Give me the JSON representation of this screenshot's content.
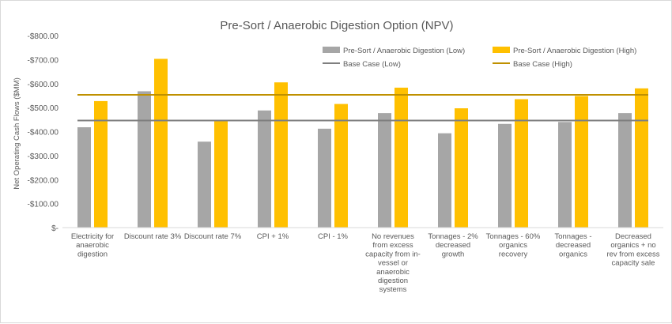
{
  "chart_data": {
    "type": "bar",
    "title": "Pre-Sort / Anaerobic Digestion Option (NPV)",
    "xlabel": "",
    "ylabel": "Net Operating Cash Flows ($MM)",
    "ylim": [
      0,
      800
    ],
    "yticks": [
      0,
      100,
      200,
      300,
      400,
      500,
      600,
      700,
      800
    ],
    "ytick_labels": [
      "$-",
      "-$100.00",
      "-$200.00",
      "-$300.00",
      "-$400.00",
      "-$500.00",
      "-$600.00",
      "-$700.00",
      "-$800.00"
    ],
    "grid": false,
    "legend_position": "top-right",
    "categories": [
      [
        "Electricity for",
        "anaerobic",
        "digestion"
      ],
      [
        "Discount rate 3%"
      ],
      [
        "Discount rate 7%"
      ],
      [
        "CPI + 1%"
      ],
      [
        "CPI - 1%"
      ],
      [
        "No revenues",
        "from excess",
        "capacity from in-",
        "vessel or",
        "anaerobic",
        "digestion",
        "systems"
      ],
      [
        "Tonnages - 2%",
        "decreased",
        "growth"
      ],
      [
        "Tonnages - 60%",
        "organics",
        "recovery"
      ],
      [
        "Tonnages -",
        "decreased",
        "organics"
      ],
      [
        "Decreased",
        "organics + no",
        "rev from excess",
        "capacity sale"
      ]
    ],
    "series": [
      {
        "name": "Pre-Sort / Anaerobic Digestion (Low)",
        "color": "#a6a6a6",
        "values": [
          418,
          568,
          358,
          488,
          412,
          477,
          393,
          432,
          440,
          477
        ]
      },
      {
        "name": "Pre-Sort / Anaerobic Digestion (High)",
        "color": "#ffc000",
        "values": [
          527,
          703,
          448,
          605,
          515,
          583,
          497,
          535,
          548,
          580
        ]
      }
    ],
    "reference_lines": [
      {
        "name": "Base Case (Low)",
        "color": "#7f7f7f",
        "value": 446
      },
      {
        "name": "Base Case (High)",
        "color": "#bf9000",
        "value": 553
      }
    ],
    "colors": {
      "axis": "#d9d9d9",
      "text": "#595959",
      "title": "#595959"
    }
  }
}
